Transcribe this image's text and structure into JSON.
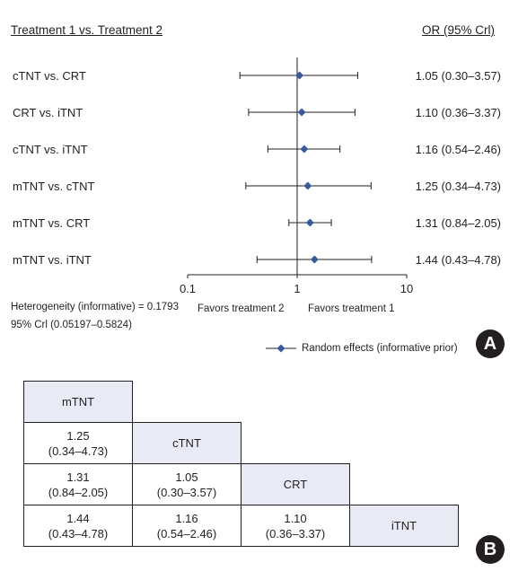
{
  "panel_a": {
    "header_left": "Treatment 1 vs. Treatment 2",
    "header_right": "OR (95% Crl)",
    "x_ticks": [
      0.1,
      1,
      10
    ],
    "x_tick_labels": [
      "0.1",
      "1",
      "10"
    ],
    "favors_left": "Favors treatment 2",
    "favors_right": "Favors treatment 1",
    "heterogeneity": "Heterogeneity (informative) = 0.1793",
    "heterogeneity_ci": "95% Crl (0.05197–0.5824)",
    "legend_label": "Random effects (informative prior)",
    "badge": "A"
  },
  "chart_data": {
    "type": "scatter",
    "subtype": "forest-plot",
    "x_scale": "log",
    "xlim": [
      0.1,
      10
    ],
    "reference_line": 1,
    "marker_color": "#3a5a9c",
    "rows": [
      {
        "label": "cTNT vs. CRT",
        "or": 1.05,
        "lo": 0.3,
        "hi": 3.57,
        "text": "1.05 (0.30–3.57)"
      },
      {
        "label": "CRT vs. iTNT",
        "or": 1.1,
        "lo": 0.36,
        "hi": 3.37,
        "text": "1.10 (0.36–3.37)"
      },
      {
        "label": "cTNT vs. iTNT",
        "or": 1.16,
        "lo": 0.54,
        "hi": 2.46,
        "text": "1.16 (0.54–2.46)"
      },
      {
        "label": "mTNT vs. cTNT",
        "or": 1.25,
        "lo": 0.34,
        "hi": 4.73,
        "text": "1.25 (0.34–4.73)"
      },
      {
        "label": "mTNT vs. CRT",
        "or": 1.31,
        "lo": 0.84,
        "hi": 2.05,
        "text": "1.31 (0.84–2.05)"
      },
      {
        "label": "mTNT vs. iTNT",
        "or": 1.44,
        "lo": 0.43,
        "hi": 4.78,
        "text": "1.44 (0.43–4.78)"
      }
    ]
  },
  "panel_b": {
    "badge": "B",
    "diagonal": [
      "mTNT",
      "cTNT",
      "CRT",
      "iTNT"
    ],
    "cells": {
      "r1c0": {
        "v": "1.25",
        "ci": "(0.34–4.73)"
      },
      "r2c0": {
        "v": "1.31",
        "ci": "(0.84–2.05)"
      },
      "r2c1": {
        "v": "1.05",
        "ci": "(0.30–3.57)"
      },
      "r3c0": {
        "v": "1.44",
        "ci": "(0.43–4.78)"
      },
      "r3c1": {
        "v": "1.16",
        "ci": "(0.54–2.46)"
      },
      "r3c2": {
        "v": "1.10",
        "ci": "(0.36–3.37)"
      }
    }
  }
}
